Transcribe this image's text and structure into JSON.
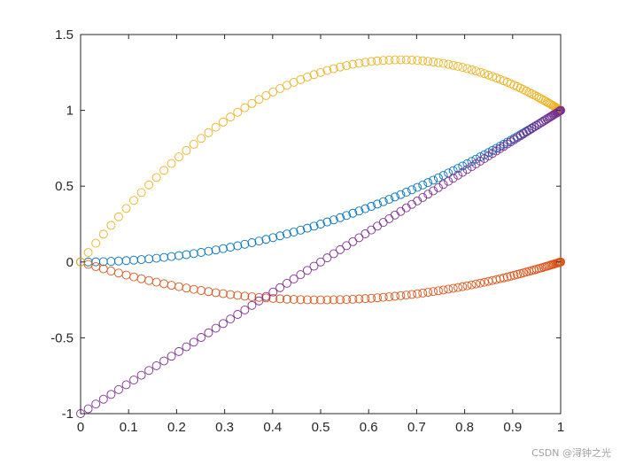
{
  "chart_data": {
    "type": "scatter",
    "marker": "open-circle",
    "title": "",
    "xlabel": "",
    "ylabel": "",
    "xlim": [
      0,
      1
    ],
    "ylim": [
      -1,
      1.5
    ],
    "xticks": [
      "0",
      "0.1",
      "0.2",
      "0.3",
      "0.4",
      "0.5",
      "0.6",
      "0.7",
      "0.8",
      "0.9",
      "1"
    ],
    "yticks": [
      "-1",
      "-0.5",
      "0",
      "0.5",
      "1",
      "1.5"
    ],
    "grid": false,
    "sample_count": 100,
    "x_sampling": "x = sin(pi*k/(2*(n-1))), k = 0..n-1",
    "series": [
      {
        "color": "#0072BD",
        "formula": "y = x^2",
        "x": [
          0,
          0.25,
          0.5,
          0.75,
          1
        ],
        "y": [
          0,
          0.0625,
          0.25,
          0.5625,
          1
        ]
      },
      {
        "color": "#D95319",
        "formula": "y = x^2 - x",
        "x": [
          0,
          0.25,
          0.5,
          0.75,
          1
        ],
        "y": [
          0,
          -0.1875,
          -0.25,
          -0.1875,
          0
        ]
      },
      {
        "color": "#EDB120",
        "formula": "y = 4x - 3x^2",
        "x": [
          0,
          0.25,
          0.5,
          0.6667,
          0.75,
          1
        ],
        "y": [
          0,
          0.8125,
          1.25,
          1.3333,
          1.3125,
          1
        ]
      },
      {
        "color": "#7E2F8E",
        "formula": "y = 2x - 1",
        "x": [
          0,
          0.5,
          1
        ],
        "y": [
          -1,
          0,
          1
        ]
      }
    ]
  },
  "watermark": "CSDN @浔钟之光"
}
